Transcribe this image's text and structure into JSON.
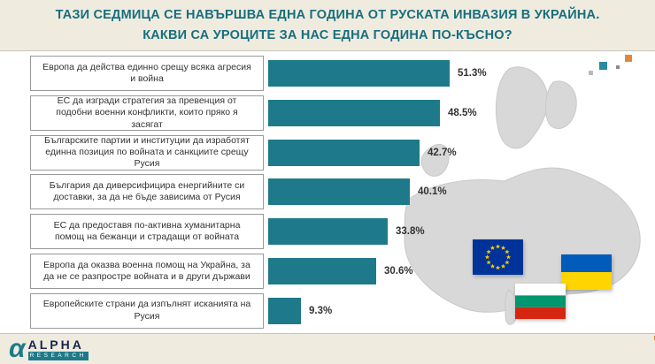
{
  "header": {
    "title_line1": "ТАЗИ СЕДМИЦА СЕ НАВЪРШВА ЕДНА ГОДИНА ОТ РУСКАТА ИНВАЗИЯ В УКРАЙНА.",
    "title_line2": "КАКВИ СА УРОЦИТЕ ЗА НАС ЕДНА ГОДИНА ПО-КЪСНО?"
  },
  "chart_data": {
    "type": "bar",
    "orientation": "horizontal",
    "title": "ТАЗИ СЕДМИЦА СЕ НАВЪРШВА ЕДНА ГОДИНА ОТ РУСКАТА ИНВАЗИЯ В УКРАЙНА. КАКВИ СА УРОЦИТЕ ЗА НАС ЕДНА ГОДИНА ПО-КЪСНО?",
    "categories": [
      "Европа да действа единно срещу всяка агресия и война",
      "ЕС да изгради стратегия за превенция от подобни военни конфликти, които пряко я засягат",
      "Българските партии и институции да изработят единна позиция по войната и санкциите срещу Русия",
      "България да диверсифицира енергийните си доставки, за да не бъде зависима от Русия",
      "ЕС да предоставя по-активна хуманитарна помощ на бежанци и страдащи от войната",
      "Европа да оказва военна помощ на Украйна, за да не се разпростре войната и в други държави",
      "Европейските страни да изпълнят исканията на Русия"
    ],
    "values": [
      51.3,
      48.5,
      42.7,
      40.1,
      33.8,
      30.6,
      9.3
    ],
    "value_labels": [
      "51.3%",
      "48.5%",
      "42.7%",
      "40.1%",
      "33.8%",
      "30.6%",
      "9.3%"
    ],
    "xlim": [
      0,
      60
    ],
    "bar_color": "#1e7a8a",
    "grid": false,
    "legend": false
  },
  "icons": {
    "flags": [
      "eu-flag",
      "ukraine-flag",
      "bulgaria-flag"
    ],
    "map": "europe-map-silhouette"
  },
  "footer": {
    "logo_alpha_glyph": "α",
    "logo_brand": "ALPHA",
    "logo_sub": "RESEARCH"
  },
  "colors": {
    "background": "#f0ebdf",
    "panel": "#ffffff",
    "title_text": "#166f7e",
    "bar": "#1e7a8a",
    "value_text": "#333333",
    "map": "#d8d8d8",
    "eu_blue": "#003399",
    "eu_star": "#ffcc00",
    "ua_blue": "#005bbb",
    "ua_yellow": "#ffd500",
    "bg_white": "#ffffff",
    "bg_green": "#00966e",
    "bg_red": "#d62612"
  }
}
